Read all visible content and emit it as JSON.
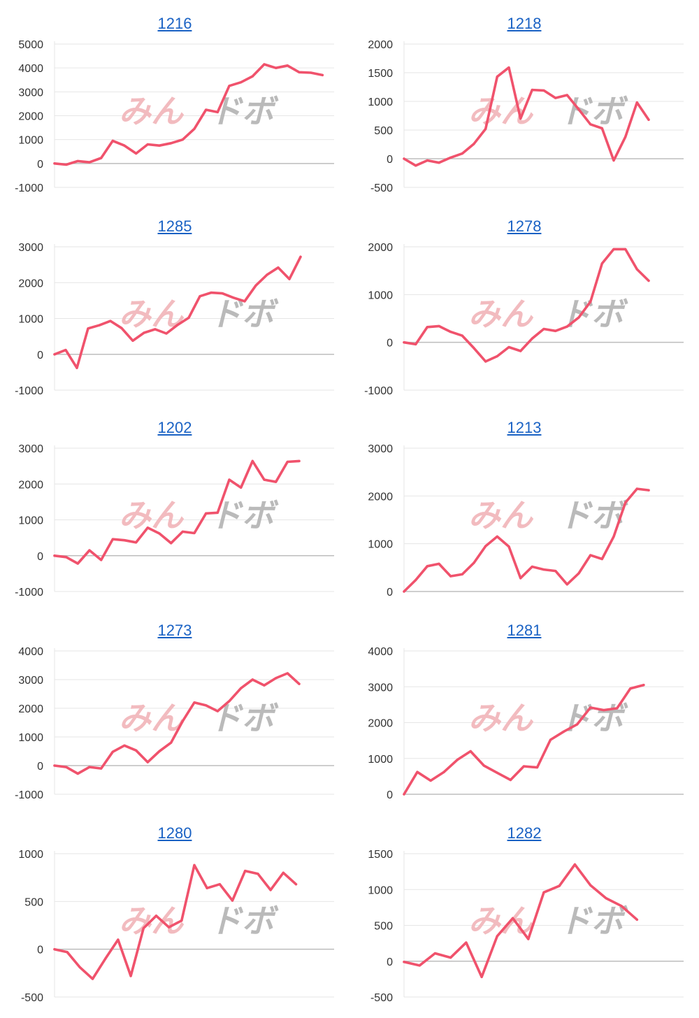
{
  "theme": {
    "line_color": "#f0526c",
    "grid_color": "#e6e6e6",
    "axis_color": "#bdbdbd",
    "link_color": "#1a62c4"
  },
  "watermark": {
    "text_a": "みん",
    "text_b": "ドボ",
    "color_a": "#f2b8bc",
    "color_b": "#b7b7b7"
  },
  "chart_data": [
    {
      "type": "line",
      "title": "1216",
      "ylim": [
        -1000,
        5000
      ],
      "yticks": [
        5000,
        4000,
        3000,
        2000,
        1000,
        0,
        -1000
      ],
      "grid": true,
      "series": [
        {
          "values": [
            0,
            -50,
            100,
            50,
            230,
            950,
            750,
            420,
            800,
            750,
            850,
            1000,
            1450,
            2250,
            2150,
            3250,
            3400,
            3650,
            4150,
            4000,
            4100,
            3820,
            3800,
            3700
          ]
        }
      ]
    },
    {
      "type": "line",
      "title": "1218",
      "ylim": [
        -500,
        2000
      ],
      "yticks": [
        2000,
        1500,
        1000,
        500,
        0,
        -500
      ],
      "grid": true,
      "series": [
        {
          "values": [
            0,
            -120,
            -30,
            -70,
            20,
            90,
            260,
            520,
            1430,
            1590,
            700,
            1200,
            1190,
            1060,
            1110,
            860,
            600,
            530,
            -30,
            380,
            980,
            680
          ]
        }
      ]
    },
    {
      "type": "line",
      "title": "1285",
      "ylim": [
        -1000,
        3000
      ],
      "yticks": [
        3000,
        2000,
        1000,
        0,
        -1000
      ],
      "grid": true,
      "series": [
        {
          "values": [
            0,
            120,
            -380,
            720,
            810,
            930,
            730,
            380,
            600,
            700,
            580,
            820,
            1020,
            1620,
            1720,
            1700,
            1580,
            1480,
            1920,
            2220,
            2420,
            2100,
            2720
          ]
        }
      ]
    },
    {
      "type": "line",
      "title": "1278",
      "ylim": [
        -1000,
        2000
      ],
      "yticks": [
        2000,
        1000,
        0,
        -1000
      ],
      "grid": true,
      "series": [
        {
          "values": [
            0,
            -40,
            320,
            340,
            220,
            140,
            -120,
            -400,
            -290,
            -100,
            -180,
            80,
            280,
            240,
            330,
            520,
            850,
            1650,
            1950,
            1950,
            1530,
            1290
          ]
        }
      ]
    },
    {
      "type": "line",
      "title": "1202",
      "ylim": [
        -1000,
        3000
      ],
      "yticks": [
        3000,
        2000,
        1000,
        0,
        -1000
      ],
      "grid": true,
      "series": [
        {
          "values": [
            0,
            -40,
            -220,
            150,
            -120,
            460,
            430,
            370,
            780,
            620,
            350,
            670,
            630,
            1180,
            1200,
            2120,
            1900,
            2640,
            2120,
            2060,
            2620,
            2640
          ]
        }
      ]
    },
    {
      "type": "line",
      "title": "1213",
      "ylim": [
        0,
        3000
      ],
      "yticks": [
        3000,
        2000,
        1000,
        0
      ],
      "grid": true,
      "series": [
        {
          "values": [
            0,
            240,
            530,
            580,
            320,
            360,
            600,
            950,
            1150,
            940,
            280,
            520,
            460,
            430,
            150,
            380,
            760,
            680,
            1150,
            1860,
            2150,
            2120
          ]
        }
      ]
    },
    {
      "type": "line",
      "title": "1273",
      "ylim": [
        -1000,
        4000
      ],
      "yticks": [
        4000,
        3000,
        2000,
        1000,
        0,
        -1000
      ],
      "grid": true,
      "series": [
        {
          "values": [
            0,
            -50,
            -280,
            -50,
            -100,
            480,
            700,
            530,
            120,
            500,
            800,
            1550,
            2200,
            2100,
            1900,
            2250,
            2700,
            3000,
            2800,
            3050,
            3220,
            2850
          ]
        }
      ]
    },
    {
      "type": "line",
      "title": "1281",
      "ylim": [
        0,
        4000
      ],
      "yticks": [
        4000,
        3000,
        2000,
        1000,
        0
      ],
      "grid": true,
      "series": [
        {
          "values": [
            0,
            620,
            380,
            620,
            960,
            1200,
            800,
            600,
            400,
            780,
            750,
            1520,
            1750,
            1950,
            2420,
            2350,
            2400,
            2950,
            3050
          ]
        }
      ]
    },
    {
      "type": "line",
      "title": "1280",
      "ylim": [
        -500,
        1000
      ],
      "yticks": [
        1000,
        500,
        0,
        -500
      ],
      "grid": true,
      "series": [
        {
          "values": [
            0,
            -30,
            -190,
            -310,
            -100,
            100,
            -280,
            220,
            350,
            230,
            300,
            880,
            640,
            680,
            510,
            820,
            790,
            620,
            800,
            680
          ]
        }
      ]
    },
    {
      "type": "line",
      "title": "1282",
      "ylim": [
        -500,
        1500
      ],
      "yticks": [
        1500,
        1000,
        500,
        0,
        -500
      ],
      "grid": true,
      "series": [
        {
          "values": [
            -10,
            -60,
            110,
            50,
            260,
            -220,
            350,
            600,
            310,
            960,
            1050,
            1350,
            1060,
            880,
            770,
            580
          ]
        }
      ]
    }
  ]
}
